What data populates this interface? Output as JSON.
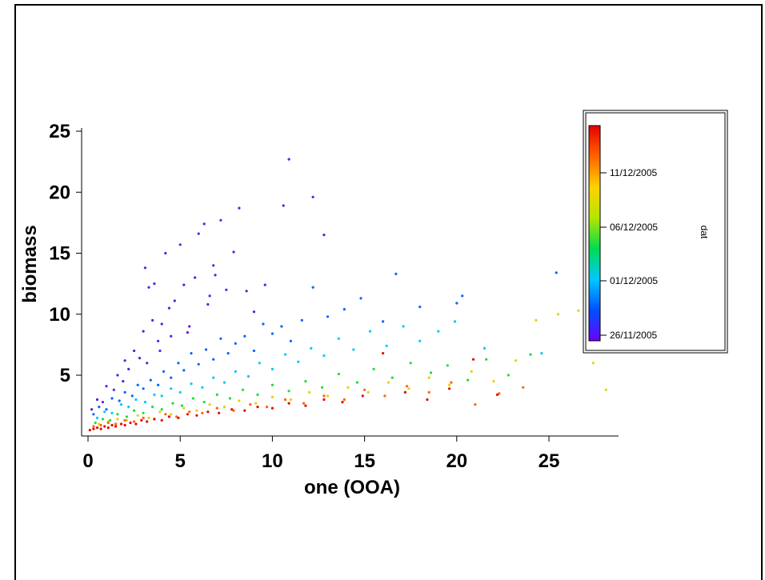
{
  "chart_data": {
    "type": "scatter",
    "xlabel": "one (OOA)",
    "ylabel": "biomass",
    "xlim": [
      -0.5,
      28.5
    ],
    "ylim": [
      0.3,
      26.0
    ],
    "x_ticks": [
      "0",
      "5",
      "10",
      "15",
      "20",
      "25"
    ],
    "y_ticks": [
      "5",
      "10",
      "15",
      "20",
      "25"
    ],
    "colorbar": {
      "label": "dat",
      "ticks": [
        "26/11/2005",
        "01/12/2005",
        "06/12/2005",
        "11/12/2005"
      ],
      "colormap": [
        "#6a00ff",
        "#0050ff",
        "#00c8ff",
        "#00dc50",
        "#b4e600",
        "#ffd200",
        "#ff6400",
        "#e60000"
      ]
    },
    "series": [
      {
        "color_group": "26/11/2005",
        "color": "#5a1ee6",
        "x": [
          0.2,
          0.5,
          0.8,
          1.0,
          1.4,
          1.6,
          1.9,
          2.0,
          2.2,
          2.5,
          2.8,
          3.0,
          3.1,
          3.3,
          3.5,
          3.6,
          3.8,
          4.0,
          4.2,
          4.4,
          4.5,
          4.7,
          5.0,
          5.2,
          5.5,
          5.8,
          6.0,
          6.3,
          6.6,
          6.8,
          7.2,
          7.5,
          7.9,
          8.2,
          8.6,
          9.0,
          9.6,
          10.6,
          10.9,
          12.2,
          12.8,
          3.2,
          3.9,
          5.4,
          6.5,
          6.9
        ],
        "y": [
          2.2,
          3.0,
          2.8,
          4.1,
          3.8,
          5.0,
          4.5,
          6.2,
          5.5,
          7.0,
          6.4,
          8.6,
          13.8,
          12.2,
          9.5,
          12.5,
          7.8,
          9.2,
          15.0,
          10.5,
          8.2,
          11.1,
          15.7,
          12.4,
          9.0,
          13.0,
          16.6,
          17.4,
          11.5,
          14.0,
          17.7,
          12.0,
          15.1,
          18.7,
          11.9,
          10.2,
          12.4,
          18.9,
          22.7,
          19.6,
          16.5,
          6.0,
          7.0,
          8.5,
          10.8,
          13.2
        ]
      },
      {
        "color_group": "01/12/2005",
        "color": "#0a64ff",
        "x": [
          0.3,
          0.6,
          1.0,
          1.3,
          1.7,
          2.0,
          2.4,
          2.7,
          3.0,
          3.4,
          3.8,
          4.1,
          4.5,
          4.9,
          5.2,
          5.6,
          6.0,
          6.4,
          6.8,
          7.2,
          7.6,
          8.0,
          8.5,
          9.0,
          9.5,
          10.0,
          10.5,
          11.0,
          11.6,
          12.2,
          13.0,
          13.9,
          14.8,
          16.0,
          16.7,
          18.0,
          20.0,
          20.3,
          25.4
        ],
        "y": [
          1.8,
          2.4,
          2.2,
          3.1,
          2.9,
          3.6,
          3.3,
          4.2,
          3.9,
          4.6,
          4.2,
          5.3,
          4.8,
          6.0,
          5.4,
          6.8,
          5.9,
          7.1,
          6.3,
          8.0,
          6.8,
          7.6,
          8.2,
          7.0,
          9.2,
          8.4,
          9.0,
          7.8,
          9.5,
          12.2,
          9.8,
          10.4,
          11.3,
          9.4,
          13.3,
          10.6,
          10.9,
          11.5,
          13.4
        ]
      },
      {
        "color_group": "01/12/2005 (cyan)",
        "color": "#00c8ff",
        "x": [
          0.5,
          0.9,
          1.3,
          1.8,
          2.2,
          2.6,
          3.1,
          3.6,
          4.0,
          4.5,
          5.0,
          5.6,
          6.2,
          6.8,
          7.4,
          8.0,
          8.7,
          9.3,
          10.0,
          10.7,
          11.4,
          12.1,
          12.8,
          13.6,
          14.4,
          15.3,
          16.2,
          17.1,
          18.0,
          19.0,
          19.9,
          21.5,
          24.6
        ],
        "y": [
          1.5,
          2.0,
          1.9,
          2.6,
          2.4,
          3.0,
          2.8,
          3.4,
          3.3,
          3.9,
          3.6,
          4.3,
          4.0,
          4.8,
          4.4,
          5.3,
          4.9,
          6.0,
          5.5,
          6.7,
          6.1,
          7.2,
          6.6,
          8.0,
          7.1,
          8.6,
          7.4,
          9.0,
          7.8,
          8.6,
          9.4,
          7.2,
          6.8
        ]
      },
      {
        "color_group": "06/12/2005",
        "color": "#1edc3c",
        "x": [
          0.4,
          0.8,
          1.2,
          1.6,
          2.1,
          2.5,
          3.0,
          3.5,
          4.0,
          4.6,
          5.1,
          5.7,
          6.3,
          7.0,
          7.7,
          8.4,
          9.2,
          10.0,
          10.9,
          11.8,
          12.7,
          13.6,
          14.6,
          15.5,
          16.5,
          17.5,
          18.6,
          19.5,
          20.6,
          21.6,
          22.8,
          24.0
        ],
        "y": [
          1.1,
          1.4,
          1.3,
          1.8,
          1.6,
          2.1,
          1.9,
          2.4,
          2.2,
          2.7,
          2.5,
          3.1,
          2.8,
          3.4,
          3.1,
          3.8,
          3.4,
          4.2,
          3.7,
          4.5,
          4.0,
          5.1,
          4.4,
          5.5,
          4.8,
          6.0,
          5.2,
          5.8,
          4.6,
          6.3,
          5.0,
          6.7
        ]
      },
      {
        "color_group": "11/12/2005",
        "color": "#e6d200",
        "x": [
          0.6,
          1.1,
          1.6,
          2.1,
          2.7,
          3.3,
          3.9,
          4.5,
          5.2,
          5.9,
          6.6,
          7.4,
          8.2,
          9.1,
          10.0,
          11.0,
          12.0,
          13.0,
          14.1,
          15.2,
          16.3,
          17.4,
          18.5,
          19.6,
          20.8,
          22.0,
          23.2,
          24.3,
          25.5,
          26.6,
          27.4,
          28.1
        ],
        "y": [
          1.0,
          1.2,
          1.4,
          1.3,
          1.7,
          1.5,
          2.0,
          1.8,
          2.3,
          2.1,
          2.6,
          2.4,
          2.9,
          2.7,
          3.2,
          3.0,
          3.6,
          3.3,
          4.0,
          3.6,
          4.4,
          3.9,
          4.8,
          4.2,
          5.3,
          4.5,
          6.2,
          9.5,
          10.0,
          10.3,
          6.0,
          3.8
        ]
      },
      {
        "color_group": "late",
        "color": "#ff6400",
        "x": [
          0.3,
          0.7,
          1.1,
          1.5,
          2.0,
          2.5,
          3.0,
          3.6,
          4.2,
          4.8,
          5.5,
          6.2,
          7.0,
          7.9,
          8.8,
          9.7,
          10.7,
          11.7,
          12.8,
          13.9,
          15.0,
          16.1,
          17.3,
          18.5,
          19.7,
          21.0,
          22.3,
          23.6
        ],
        "y": [
          0.8,
          0.9,
          1.1,
          1.0,
          1.3,
          1.2,
          1.5,
          1.4,
          1.8,
          1.6,
          2.0,
          1.9,
          2.3,
          2.1,
          2.6,
          2.4,
          3.0,
          2.7,
          3.3,
          3.0,
          3.8,
          3.3,
          4.1,
          3.6,
          4.4,
          2.6,
          3.5,
          4.0
        ]
      },
      {
        "color_group": "latest",
        "color": "#e60a00",
        "x": [
          0.1,
          0.3,
          0.5,
          0.7,
          0.9,
          1.1,
          1.3,
          1.5,
          1.8,
          2.0,
          2.3,
          2.6,
          2.9,
          3.2,
          3.6,
          4.0,
          4.4,
          4.9,
          5.4,
          5.9,
          6.5,
          7.1,
          7.8,
          8.5,
          9.2,
          10.0,
          10.9,
          11.8,
          12.8,
          13.8,
          14.9,
          16.0,
          17.2,
          18.4,
          19.6,
          20.9,
          22.2
        ],
        "y": [
          0.5,
          0.6,
          0.7,
          0.6,
          0.8,
          0.7,
          0.9,
          0.8,
          1.0,
          0.9,
          1.1,
          1.0,
          1.3,
          1.2,
          1.4,
          1.3,
          1.6,
          1.5,
          1.8,
          1.7,
          2.0,
          1.9,
          2.2,
          2.1,
          2.4,
          2.3,
          2.7,
          2.5,
          3.0,
          2.8,
          3.3,
          6.8,
          3.6,
          3.0,
          3.9,
          6.3,
          3.4
        ]
      }
    ]
  }
}
